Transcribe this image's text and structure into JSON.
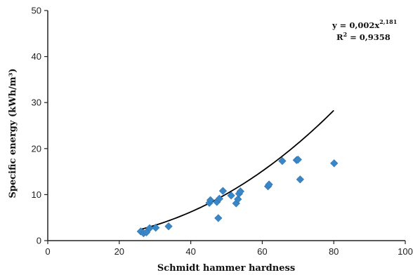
{
  "chart_data": {
    "type": "scatter",
    "xlabel": "Schmidt hammer hardness",
    "ylabel": "Specific energy (kWh/m³)",
    "xlim": [
      0,
      100
    ],
    "ylim": [
      0,
      50
    ],
    "x_ticks": [
      "0",
      "20",
      "40",
      "60",
      "80",
      "100"
    ],
    "y_ticks": [
      "0",
      "10",
      "20",
      "30",
      "40",
      "50"
    ],
    "grid": false,
    "marker_color": "#3a87c8",
    "trend_color": "#000000",
    "points": [
      {
        "x": 26.0,
        "y": 2.0
      },
      {
        "x": 26.8,
        "y": 1.6
      },
      {
        "x": 27.6,
        "y": 1.8
      },
      {
        "x": 28.5,
        "y": 2.7
      },
      {
        "x": 30.2,
        "y": 2.8
      },
      {
        "x": 33.8,
        "y": 3.1
      },
      {
        "x": 45.2,
        "y": 8.2
      },
      {
        "x": 45.5,
        "y": 8.8
      },
      {
        "x": 47.3,
        "y": 8.4
      },
      {
        "x": 47.7,
        "y": 4.9
      },
      {
        "x": 48.0,
        "y": 9.1
      },
      {
        "x": 49.0,
        "y": 10.8
      },
      {
        "x": 51.3,
        "y": 9.8
      },
      {
        "x": 52.7,
        "y": 8.1
      },
      {
        "x": 53.2,
        "y": 9.0
      },
      {
        "x": 53.5,
        "y": 10.2
      },
      {
        "x": 53.9,
        "y": 10.7
      },
      {
        "x": 61.6,
        "y": 11.8
      },
      {
        "x": 61.9,
        "y": 12.2
      },
      {
        "x": 65.6,
        "y": 17.3
      },
      {
        "x": 69.6,
        "y": 17.5
      },
      {
        "x": 70.0,
        "y": 17.6
      },
      {
        "x": 70.6,
        "y": 13.3
      },
      {
        "x": 80.1,
        "y": 16.8
      }
    ],
    "trendline": {
      "x_range": [
        26,
        80
      ],
      "coefficient": 0.002,
      "exponent": 2.181
    },
    "equation": {
      "prefix": "y = 0,002x",
      "exponent_label": "2,181",
      "r2_prefix": "R",
      "r2_sup": "2",
      "r2_value": " = 0,9358"
    }
  }
}
